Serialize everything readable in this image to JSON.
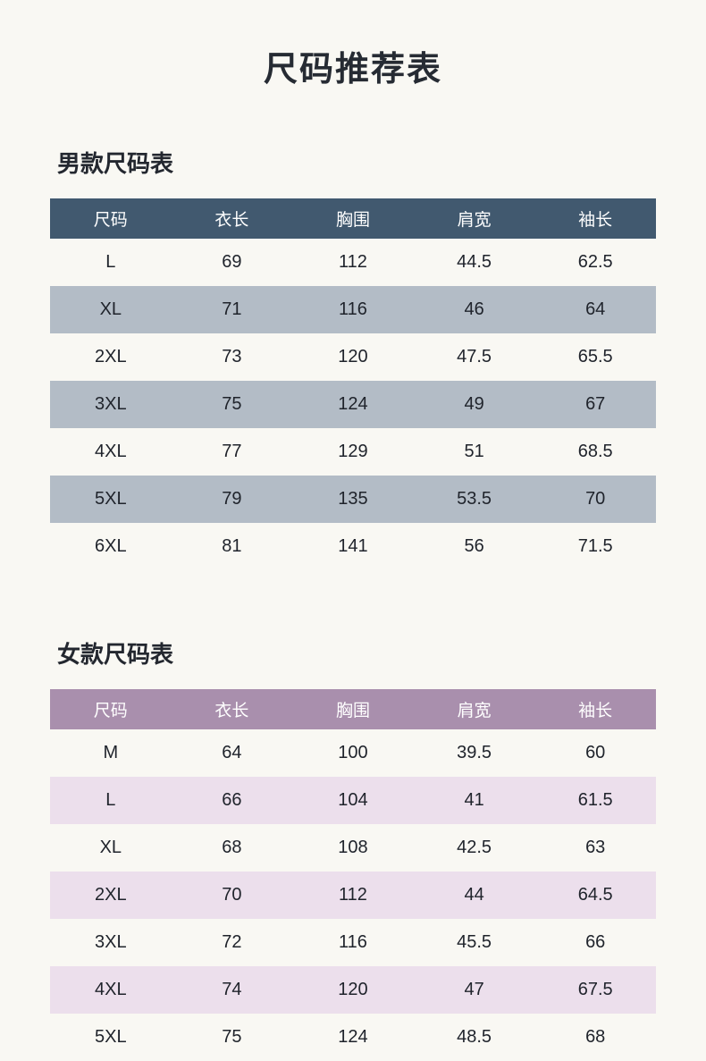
{
  "page": {
    "title": "尺码推荐表",
    "background": "#f9f8f3"
  },
  "chart_data": [
    {
      "type": "table",
      "title": "男款尺码表",
      "header_color": "#41596f",
      "stripe_color": "#b3bcc6",
      "columns": [
        "尺码",
        "衣长",
        "胸围",
        "肩宽",
        "袖长"
      ],
      "rows": [
        [
          "L",
          "69",
          "112",
          "44.5",
          "62.5"
        ],
        [
          "XL",
          "71",
          "116",
          "46",
          "64"
        ],
        [
          "2XL",
          "73",
          "120",
          "47.5",
          "65.5"
        ],
        [
          "3XL",
          "75",
          "124",
          "49",
          "67"
        ],
        [
          "4XL",
          "77",
          "129",
          "51",
          "68.5"
        ],
        [
          "5XL",
          "79",
          "135",
          "53.5",
          "70"
        ],
        [
          "6XL",
          "81",
          "141",
          "56",
          "71.5"
        ]
      ]
    },
    {
      "type": "table",
      "title": "女款尺码表",
      "header_color": "#a98fad",
      "stripe_color": "#ecdfec",
      "columns": [
        "尺码",
        "衣长",
        "胸围",
        "肩宽",
        "袖长"
      ],
      "rows": [
        [
          "M",
          "64",
          "100",
          "39.5",
          "60"
        ],
        [
          "L",
          "66",
          "104",
          "41",
          "61.5"
        ],
        [
          "XL",
          "68",
          "108",
          "42.5",
          "63"
        ],
        [
          "2XL",
          "70",
          "112",
          "44",
          "64.5"
        ],
        [
          "3XL",
          "72",
          "116",
          "45.5",
          "66"
        ],
        [
          "4XL",
          "74",
          "120",
          "47",
          "67.5"
        ],
        [
          "5XL",
          "75",
          "124",
          "48.5",
          "68"
        ]
      ]
    }
  ]
}
